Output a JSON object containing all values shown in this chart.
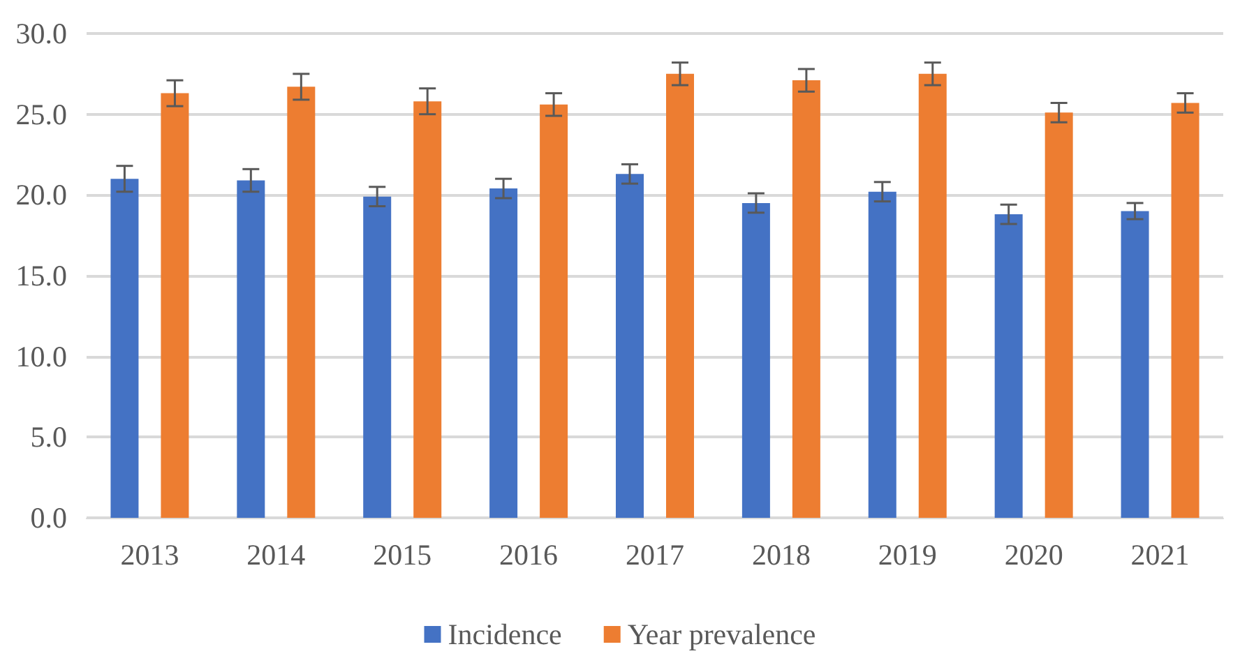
{
  "chart_data": {
    "type": "bar",
    "categories": [
      "2013",
      "2014",
      "2015",
      "2016",
      "2017",
      "2018",
      "2019",
      "2020",
      "2021"
    ],
    "series": [
      {
        "name": "Incidence",
        "color": "#4472c4",
        "values": [
          21.0,
          20.9,
          19.9,
          20.4,
          21.3,
          19.5,
          20.2,
          18.8,
          19.0
        ],
        "errors": [
          0.8,
          0.7,
          0.6,
          0.6,
          0.6,
          0.6,
          0.6,
          0.6,
          0.5
        ]
      },
      {
        "name": "Year prevalence",
        "color": "#ed7d31",
        "values": [
          26.3,
          26.7,
          25.8,
          25.6,
          27.5,
          27.1,
          27.5,
          25.1,
          25.7
        ],
        "errors": [
          0.8,
          0.8,
          0.8,
          0.7,
          0.7,
          0.7,
          0.7,
          0.6,
          0.6
        ]
      }
    ],
    "ylim": [
      0,
      30
    ],
    "yticks": [
      {
        "value": 0,
        "label": "0.0"
      },
      {
        "value": 5,
        "label": "5.0"
      },
      {
        "value": 10,
        "label": "10.0"
      },
      {
        "value": 15,
        "label": "15.0"
      },
      {
        "value": 20,
        "label": "20.0"
      },
      {
        "value": 25,
        "label": "25.0"
      },
      {
        "value": 30,
        "label": "30.0"
      }
    ],
    "grid": "y",
    "legend": "bottom"
  }
}
